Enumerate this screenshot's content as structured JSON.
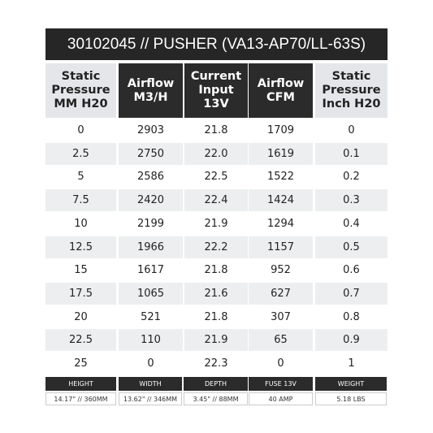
{
  "title": "30102045 // PUSHER (VA13-AP70/LL-63S)",
  "table": {
    "headers": [
      [
        "Static",
        "Pressure",
        "MM H20"
      ],
      [
        "Airflow",
        "M3/H"
      ],
      [
        "Current",
        "Input",
        "13V"
      ],
      [
        "Airflow",
        "CFM"
      ],
      [
        "Static",
        "Pressure",
        "Inch H20"
      ]
    ],
    "rows": [
      [
        "0",
        "2903",
        "21.8",
        "1709",
        "0"
      ],
      [
        "2.5",
        "2750",
        "22.0",
        "1619",
        "0.1"
      ],
      [
        "5",
        "2586",
        "22.5",
        "1522",
        "0.2"
      ],
      [
        "7.5",
        "2420",
        "22.4",
        "1424",
        "0.3"
      ],
      [
        "10",
        "2199",
        "21.9",
        "1294",
        "0.4"
      ],
      [
        "12.5",
        "1966",
        "22.2",
        "1157",
        "0.5"
      ],
      [
        "15",
        "1617",
        "21.8",
        "952",
        "0.6"
      ],
      [
        "17.5",
        "1065",
        "21.6",
        "627",
        "0.7"
      ],
      [
        "20",
        "521",
        "21.8",
        "307",
        "0.8"
      ],
      [
        "22.5",
        "110",
        "21.9",
        "65",
        "0.9"
      ],
      [
        "25",
        "0",
        "22.3",
        "0",
        "1"
      ]
    ]
  },
  "specs": {
    "labels": [
      "HEIGHT",
      "WIDTH",
      "DEPTH",
      "FUSE 13V",
      "WEIGHT"
    ],
    "values": [
      "14.17\" // 360MM",
      "13.62\" // 346MM",
      "3.45\" // 88MM",
      "40 AMP",
      "5.18 LBS"
    ]
  }
}
